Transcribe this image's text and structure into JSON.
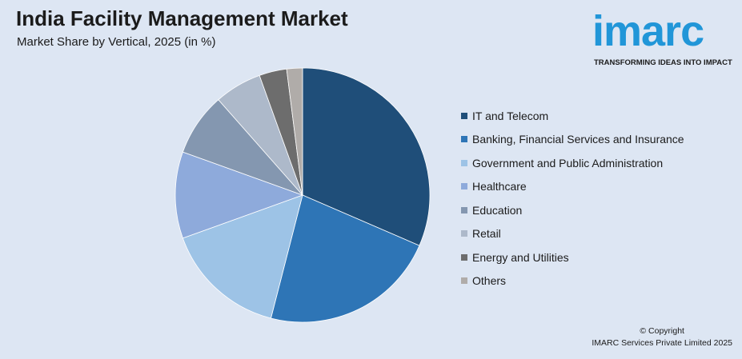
{
  "header": {
    "title": "India Facility Management Market",
    "subtitle": "Market Share by Vertical, 2025 (in %)"
  },
  "logo": {
    "wordmark": "imarc",
    "tagline": "TRANSFORMING IDEAS INTO IMPACT",
    "color": "#2196d8"
  },
  "chart_data": {
    "type": "pie",
    "title": "India Facility Management Market",
    "subtitle": "Market Share by Vertical, 2025 (in %)",
    "legend_position": "right",
    "slices": [
      {
        "label": "IT and Telecom",
        "value": 31.5,
        "color": "#1f4e79"
      },
      {
        "label": "Banking, Financial Services and Insurance",
        "value": 22.5,
        "color": "#2e75b6"
      },
      {
        "label": "Government and Public Administration",
        "value": 15.5,
        "color": "#9dc3e6"
      },
      {
        "label": "Healthcare",
        "value": 11.0,
        "color": "#8eaadb"
      },
      {
        "label": "Education",
        "value": 8.0,
        "color": "#8497b0"
      },
      {
        "label": "Retail",
        "value": 6.0,
        "color": "#adb9ca"
      },
      {
        "label": "Energy and Utilities",
        "value": 3.5,
        "color": "#6d6d6d"
      },
      {
        "label": "Others",
        "value": 2.0,
        "color": "#b0aca9"
      }
    ]
  },
  "footer": {
    "copyright": "© Copyright",
    "company": "IMARC Services Private Limited 2025"
  }
}
